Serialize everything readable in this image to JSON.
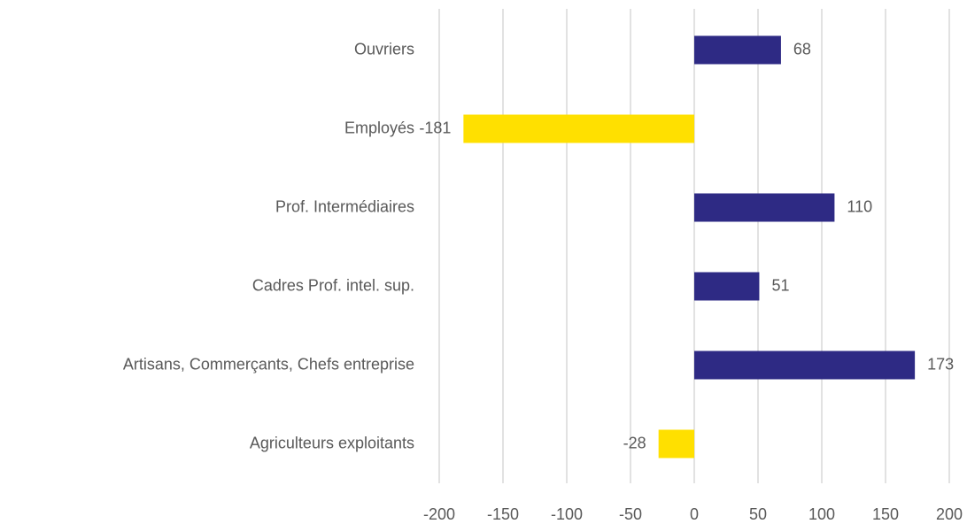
{
  "chart_data": {
    "type": "hbar",
    "categories": [
      "Ouvriers",
      "Employés",
      "Prof. Intermédiaires",
      "Cadres Prof. intel. sup.",
      "Artisans, Commerçants, Chefs entreprise",
      "Agriculteurs exploitants"
    ],
    "values": [
      68,
      -181,
      110,
      51,
      173,
      -28
    ],
    "colors": [
      "#2e2a84",
      "#ffe000",
      "#2e2a84",
      "#2e2a84",
      "#2e2a84",
      "#ffe000"
    ],
    "xlim": [
      -200,
      200
    ],
    "xticks": [
      -200,
      -150,
      -100,
      -50,
      0,
      50,
      100,
      150,
      200
    ],
    "grid": true
  }
}
